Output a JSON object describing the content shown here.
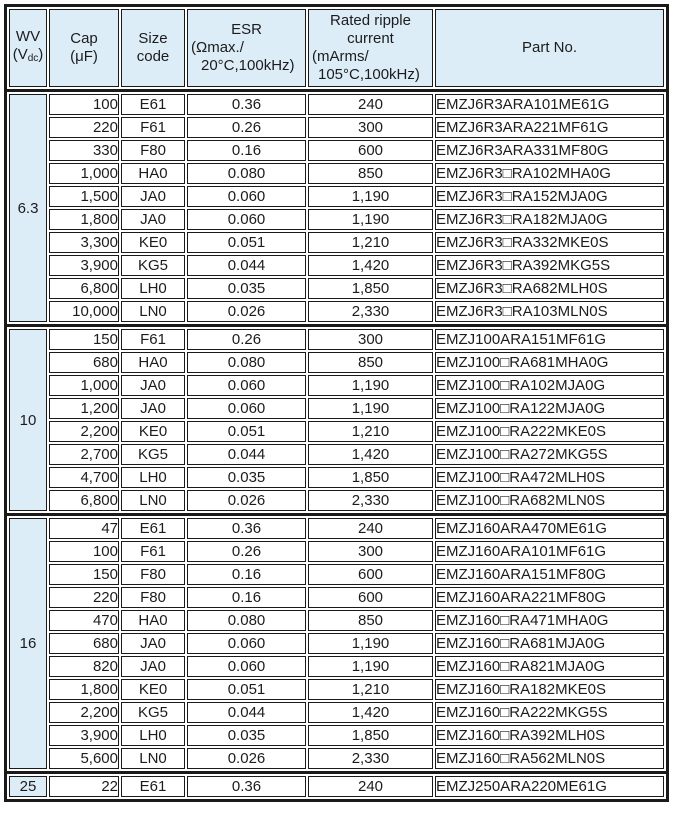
{
  "table": {
    "colors": {
      "header_bg": "#ddedf7",
      "row_bg": "#ffffff",
      "border": "#1a1a1a",
      "text": "#1c1c1e"
    },
    "columns": [
      {
        "id": "wv",
        "name": "wv-header",
        "width": 38,
        "header_lines": [
          [
            {
              "t": "WV"
            }
          ],
          [
            {
              "t": "(V"
            },
            {
              "t": "dc",
              "sub": true
            },
            {
              "t": ")"
            }
          ]
        ]
      },
      {
        "id": "cap",
        "name": "cap-header",
        "width": 70,
        "header_lines": [
          [
            {
              "t": "Cap"
            }
          ],
          [
            {
              "t": "(μF)"
            }
          ]
        ]
      },
      {
        "id": "size",
        "name": "size-code-header",
        "width": 64,
        "header_lines": [
          [
            {
              "t": "Size"
            }
          ],
          [
            {
              "t": "code"
            }
          ]
        ]
      },
      {
        "id": "esr",
        "name": "esr-header",
        "width": 119,
        "header_lines": [
          [
            {
              "t": "ESR"
            }
          ],
          [
            {
              "t": "(Ωmax./"
            }
          ],
          [
            {
              "t": "20°C,100kHz)"
            }
          ]
        ]
      },
      {
        "id": "ripple",
        "name": "ripple-current-header",
        "width": 125,
        "header_lines": [
          [
            {
              "t": "Rated ripple"
            }
          ],
          [
            {
              "t": "current"
            }
          ],
          [
            {
              "t": "(mArms/"
            }
          ],
          [
            {
              "t": "105°C,100kHz)"
            }
          ]
        ]
      },
      {
        "id": "part",
        "name": "part-no-header",
        "width": null,
        "header_lines": [
          [
            {
              "t": "Part No."
            }
          ]
        ]
      }
    ],
    "sections": [
      {
        "wv": "6.3",
        "rows": [
          [
            "100",
            "E61",
            "0.36",
            "240",
            "EMZJ6R3ARA101ME61G"
          ],
          [
            "220",
            "F61",
            "0.26",
            "300",
            "EMZJ6R3ARA221MF61G"
          ],
          [
            "330",
            "F80",
            "0.16",
            "600",
            "EMZJ6R3ARA331MF80G"
          ],
          [
            "1,000",
            "HA0",
            "0.080",
            "850",
            "EMZJ6R3□RA102MHA0G"
          ],
          [
            "1,500",
            "JA0",
            "0.060",
            "1,190",
            "EMZJ6R3□RA152MJA0G"
          ],
          [
            "1,800",
            "JA0",
            "0.060",
            "1,190",
            "EMZJ6R3□RA182MJA0G"
          ],
          [
            "3,300",
            "KE0",
            "0.051",
            "1,210",
            "EMZJ6R3□RA332MKE0S"
          ],
          [
            "3,900",
            "KG5",
            "0.044",
            "1,420",
            "EMZJ6R3□RA392MKG5S"
          ],
          [
            "6,800",
            "LH0",
            "0.035",
            "1,850",
            "EMZJ6R3□RA682MLH0S"
          ],
          [
            "10,000",
            "LN0",
            "0.026",
            "2,330",
            "EMZJ6R3□RA103MLN0S"
          ]
        ]
      },
      {
        "wv": "10",
        "rows": [
          [
            "150",
            "F61",
            "0.26",
            "300",
            "EMZJ100ARA151MF61G"
          ],
          [
            "680",
            "HA0",
            "0.080",
            "850",
            "EMZJ100□RA681MHA0G"
          ],
          [
            "1,000",
            "JA0",
            "0.060",
            "1,190",
            "EMZJ100□RA102MJA0G"
          ],
          [
            "1,200",
            "JA0",
            "0.060",
            "1,190",
            "EMZJ100□RA122MJA0G"
          ],
          [
            "2,200",
            "KE0",
            "0.051",
            "1,210",
            "EMZJ100□RA222MKE0S"
          ],
          [
            "2,700",
            "KG5",
            "0.044",
            "1,420",
            "EMZJ100□RA272MKG5S"
          ],
          [
            "4,700",
            "LH0",
            "0.035",
            "1,850",
            "EMZJ100□RA472MLH0S"
          ],
          [
            "6,800",
            "LN0",
            "0.026",
            "2,330",
            "EMZJ100□RA682MLN0S"
          ]
        ]
      },
      {
        "wv": "16",
        "rows": [
          [
            "47",
            "E61",
            "0.36",
            "240",
            "EMZJ160ARA470ME61G"
          ],
          [
            "100",
            "F61",
            "0.26",
            "300",
            "EMZJ160ARA101MF61G"
          ],
          [
            "150",
            "F80",
            "0.16",
            "600",
            "EMZJ160ARA151MF80G"
          ],
          [
            "220",
            "F80",
            "0.16",
            "600",
            "EMZJ160ARA221MF80G"
          ],
          [
            "470",
            "HA0",
            "0.080",
            "850",
            "EMZJ160□RA471MHA0G"
          ],
          [
            "680",
            "JA0",
            "0.060",
            "1,190",
            "EMZJ160□RA681MJA0G"
          ],
          [
            "820",
            "JA0",
            "0.060",
            "1,190",
            "EMZJ160□RA821MJA0G"
          ],
          [
            "1,800",
            "KE0",
            "0.051",
            "1,210",
            "EMZJ160□RA182MKE0S"
          ],
          [
            "2,200",
            "KG5",
            "0.044",
            "1,420",
            "EMZJ160□RA222MKG5S"
          ],
          [
            "3,900",
            "LH0",
            "0.035",
            "1,850",
            "EMZJ160□RA392MLH0S"
          ],
          [
            "5,600",
            "LN0",
            "0.026",
            "2,330",
            "EMZJ160□RA562MLN0S"
          ]
        ]
      },
      {
        "wv": "25",
        "rows": [
          [
            "22",
            "E61",
            "0.36",
            "240",
            "EMZJ250ARA220ME61G"
          ]
        ]
      }
    ]
  }
}
